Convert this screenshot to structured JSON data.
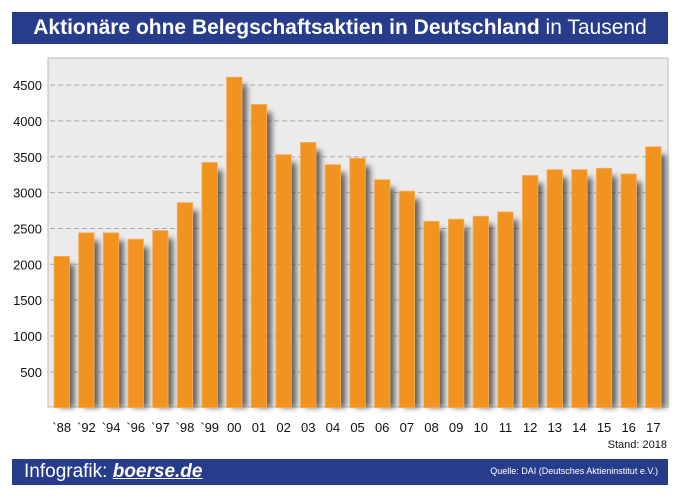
{
  "title": {
    "bold": "Aktionäre ohne Belegschaftsaktien in Deutschland",
    "normal": "in Tausend"
  },
  "stand": "Stand: 2018",
  "footer": {
    "label": "Infografik:",
    "brand": "boerse.de",
    "source": "Quelle: DAI (Deutsches Aktieninstitut e.V.)"
  },
  "colors": {
    "bar": "#f29320",
    "banner": "#283c8c",
    "plot_bg": "#ebebeb"
  },
  "chart_data": {
    "type": "bar",
    "title": "Aktionäre ohne Belegschaftsaktien in Deutschland in Tausend",
    "categories": [
      "`88",
      "`92",
      "`94",
      "`96",
      "`97",
      "`98",
      "`99",
      "00",
      "01",
      "02",
      "03",
      "04",
      "05",
      "06",
      "07",
      "08",
      "09",
      "10",
      "11",
      "12",
      "13",
      "14",
      "15",
      "16",
      "17"
    ],
    "values": [
      2110,
      2440,
      2440,
      2350,
      2470,
      2860,
      3420,
      4610,
      4230,
      3530,
      3700,
      3390,
      3480,
      3180,
      3020,
      2600,
      2630,
      2670,
      2730,
      3240,
      3320,
      3320,
      3340,
      3260,
      3640
    ],
    "yticks": [
      500,
      1000,
      1500,
      2000,
      2500,
      3000,
      3500,
      4000,
      4500
    ],
    "ylim": [
      0,
      4850
    ],
    "grid": true,
    "legend": "none"
  }
}
